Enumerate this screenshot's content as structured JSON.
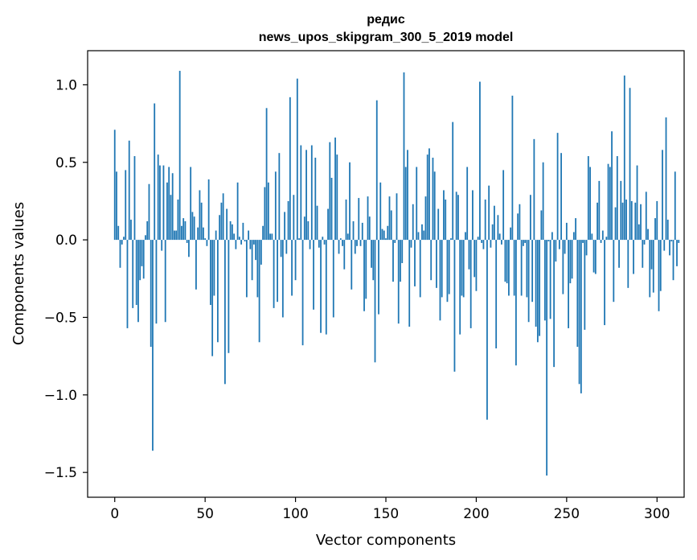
{
  "chart_data": {
    "type": "bar",
    "title": "редис",
    "subtitle": "news_upos_skipgram_300_5_2019 model",
    "xlabel": "Vector components",
    "ylabel": "Components values",
    "xlim": [
      -15,
      315
    ],
    "ylim": [
      -1.66,
      1.22
    ],
    "xticks": [
      0,
      50,
      100,
      150,
      200,
      250,
      300
    ],
    "xtick_labels": [
      "0",
      "50",
      "100",
      "150",
      "200",
      "250",
      "300"
    ],
    "yticks": [
      -1.5,
      -1.0,
      -0.5,
      0.0,
      0.5,
      1.0
    ],
    "ytick_labels": [
      "−1.5",
      "−1.0",
      "−0.5",
      "0.0",
      "0.5",
      "1.0"
    ],
    "grid": false,
    "bar_color": "#1f77b4",
    "values": [
      0.71,
      0.44,
      0.09,
      -0.18,
      -0.03,
      0.02,
      0.45,
      -0.57,
      0.64,
      0.13,
      -0.44,
      0.54,
      -0.42,
      -0.53,
      -0.26,
      -0.17,
      -0.25,
      0.03,
      0.12,
      0.36,
      -0.69,
      -1.36,
      0.88,
      -0.54,
      0.55,
      0.48,
      -0.07,
      0.48,
      -0.53,
      0.37,
      0.47,
      0.29,
      0.43,
      0.06,
      0.06,
      0.26,
      1.09,
      0.09,
      0.14,
      0.12,
      -0.02,
      -0.11,
      0.47,
      0.18,
      0.15,
      -0.32,
      0.08,
      0.32,
      0.24,
      0.08,
      0.01,
      -0.04,
      0.39,
      -0.42,
      -0.75,
      -0.36,
      0.06,
      -0.66,
      0.16,
      0.24,
      0.3,
      -0.93,
      0.2,
      -0.73,
      0.12,
      0.1,
      0.04,
      -0.06,
      0.37,
      0.02,
      -0.03,
      0.11,
      -0.01,
      -0.37,
      0.06,
      -0.06,
      -0.26,
      -0.03,
      -0.13,
      -0.37,
      -0.66,
      -0.16,
      0.09,
      0.34,
      0.85,
      0.37,
      0.04,
      0.04,
      -0.44,
      0.44,
      -0.4,
      0.56,
      -0.11,
      -0.5,
      0.18,
      -0.09,
      0.25,
      0.92,
      -0.36,
      0.29,
      -0.26,
      1.04,
      0.01,
      0.61,
      -0.68,
      0.15,
      0.58,
      0.12,
      -0.06,
      0.61,
      -0.45,
      0.53,
      0.22,
      -0.05,
      -0.6,
      0.02,
      -0.03,
      -0.61,
      0.2,
      0.63,
      0.4,
      -0.5,
      0.66,
      0.55,
      -0.09,
      0.01,
      -0.04,
      -0.19,
      0.26,
      0.04,
      0.5,
      -0.32,
      0.12,
      -0.09,
      -0.04,
      0.27,
      -0.04,
      0.11,
      -0.46,
      -0.38,
      0.28,
      0.15,
      -0.18,
      -0.26,
      -0.79,
      0.9,
      -0.48,
      0.37,
      0.07,
      0.06,
      0.01,
      0.09,
      0.28,
      0.19,
      -0.27,
      -0.02,
      0.3,
      -0.54,
      -0.27,
      -0.15,
      1.08,
      0.47,
      0.58,
      -0.56,
      -0.05,
      0.23,
      -0.3,
      0.47,
      0.05,
      -0.37,
      0.1,
      0.06,
      0.28,
      0.55,
      0.59,
      -0.26,
      0.53,
      0.44,
      -0.31,
      0.2,
      -0.52,
      -0.37,
      0.32,
      0.26,
      -0.4,
      -0.35,
      0.01,
      0.76,
      -0.85,
      0.31,
      0.29,
      -0.61,
      -0.36,
      -0.37,
      0.05,
      0.47,
      -0.19,
      -0.57,
      0.32,
      -0.24,
      -0.33,
      0.02,
      1.02,
      -0.02,
      -0.06,
      0.26,
      -1.16,
      0.35,
      -0.05,
      0.1,
      0.22,
      -0.7,
      0.16,
      0.04,
      -0.03,
      0.45,
      -0.27,
      -0.28,
      -0.36,
      0.08,
      0.93,
      -0.36,
      -0.81,
      0.17,
      0.23,
      -0.36,
      -0.04,
      -0.02,
      -0.37,
      -0.53,
      0.29,
      -0.4,
      0.65,
      -0.56,
      -0.66,
      -0.62,
      0.19,
      0.5,
      -0.52,
      -1.52,
      -0.01,
      -0.51,
      0.05,
      -0.82,
      -0.14,
      0.69,
      -0.06,
      0.56,
      -0.35,
      -0.09,
      0.11,
      -0.57,
      -0.28,
      -0.25,
      0.05,
      0.14,
      -0.69,
      -0.93,
      -0.99,
      -0.02,
      -0.58,
      -0.1,
      0.54,
      0.47,
      0.04,
      -0.21,
      -0.22,
      0.24,
      0.38,
      -0.02,
      0.06,
      -0.55,
      0.02,
      0.49,
      0.47,
      0.7,
      -0.4,
      0.21,
      0.54,
      -0.18,
      0.38,
      0.24,
      1.06,
      0.26,
      -0.31,
      0.98,
      0.25,
      -0.22,
      0.24,
      0.48,
      0.1,
      0.23,
      -0.18,
      -0.03,
      0.31,
      0.07,
      -0.37,
      -0.19,
      -0.34,
      0.14,
      0.25,
      -0.46,
      -0.33,
      0.58,
      -0.07,
      0.79,
      0.13,
      -0.1,
      -0.01,
      -0.26,
      0.44,
      -0.17,
      -0.02
    ]
  }
}
